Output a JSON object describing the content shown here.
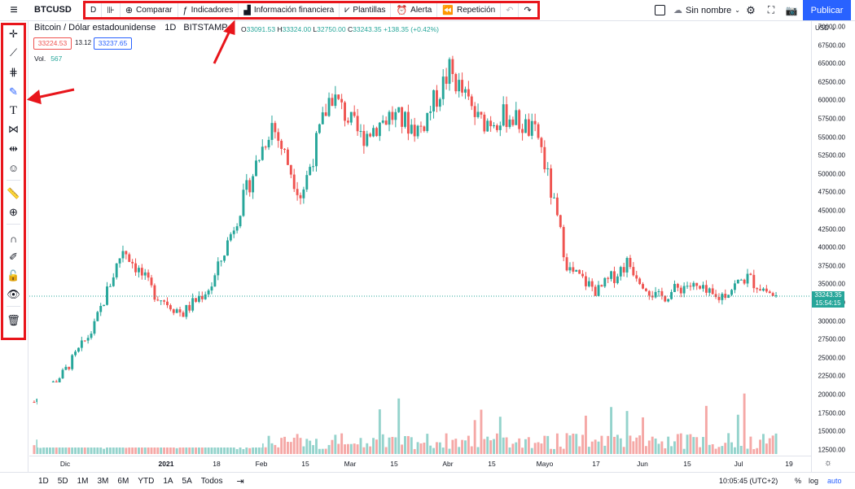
{
  "header": {
    "menu_icon": "hamburger-icon",
    "symbol": "BTCUSD",
    "interval": "D",
    "toolbar": [
      {
        "label": "",
        "icon": "candles-icon"
      },
      {
        "label": "Comparar",
        "icon": "plus-circle-icon"
      },
      {
        "label": "Indicadores",
        "icon": "indicators-icon"
      },
      {
        "label": "Información financiera",
        "icon": "bar-chart-icon"
      },
      {
        "label": "Plantillas",
        "icon": "templates-icon"
      },
      {
        "label": "Alerta",
        "icon": "alarm-icon"
      },
      {
        "label": "Repetición",
        "icon": "rewind-icon"
      }
    ],
    "layout_name": "Sin nombre",
    "publish": "Publicar"
  },
  "legend": {
    "title": "Bitcoin / Dólar estadounidense",
    "interval": "1D",
    "exchange": "BITSTAMP",
    "open": "33091.53",
    "high": "33324.00",
    "low": "32750.00",
    "close": "33243.35",
    "change": "+138.35 (+0.42%)",
    "bid": "33224.53",
    "spread": "13.12",
    "ask": "33237.65",
    "vol_label": "Vol.",
    "vol_value": "567"
  },
  "left_tools": [
    "crosshair-icon",
    "trend-line-icon",
    "fib-icon",
    "brush-icon",
    "text-icon",
    "pattern-icon",
    "measure-range-icon",
    "emoji-icon",
    "ruler-icon",
    "zoom-in-icon",
    "magnet-icon",
    "lock-drawing-icon",
    "lock-icon",
    "eye-icon",
    "trash-icon"
  ],
  "price_axis": {
    "currency": "USD",
    "labels": [
      "70000.00",
      "67500.00",
      "65000.00",
      "62500.00",
      "60000.00",
      "57500.00",
      "55000.00",
      "52500.00",
      "50000.00",
      "47500.00",
      "45000.00",
      "42500.00",
      "40000.00",
      "37500.00",
      "35000.00",
      "32500.00",
      "30000.00",
      "27500.00",
      "25000.00",
      "22500.00",
      "20000.00",
      "17500.00",
      "15000.00",
      "12500.00"
    ],
    "last_price": "33243.35",
    "countdown": "15:54:15"
  },
  "time_axis": {
    "labels": [
      {
        "text": "Dic",
        "bold": false
      },
      {
        "text": "2021",
        "bold": true
      },
      {
        "text": "18",
        "bold": false
      },
      {
        "text": "Feb",
        "bold": false
      },
      {
        "text": "15",
        "bold": false
      },
      {
        "text": "Mar",
        "bold": false
      },
      {
        "text": "15",
        "bold": false
      },
      {
        "text": "Abr",
        "bold": false
      },
      {
        "text": "15",
        "bold": false
      },
      {
        "text": "Mayo",
        "bold": false
      },
      {
        "text": "17",
        "bold": false
      },
      {
        "text": "Jun",
        "bold": false
      },
      {
        "text": "15",
        "bold": false
      },
      {
        "text": "Jul",
        "bold": false
      },
      {
        "text": "19",
        "bold": false
      }
    ]
  },
  "bottom": {
    "ranges": [
      "1D",
      "5D",
      "1M",
      "3M",
      "6M",
      "YTD",
      "1A",
      "5A",
      "Todos"
    ],
    "time": "10:05:45 (UTC+2)",
    "percent": "%",
    "log": "log",
    "auto": "auto"
  },
  "chart_data": {
    "type": "candlestick",
    "title": "Bitcoin / Dólar estadounidense",
    "ylim": [
      11000,
      70500
    ],
    "colors": {
      "up": "#26a69a",
      "down": "#ef5350"
    },
    "x": [
      "Dic",
      "2021",
      "18",
      "Feb",
      "15",
      "Mar",
      "15",
      "Abr",
      "15",
      "Mayo",
      "17",
      "Jun",
      "15",
      "Jul",
      "19"
    ],
    "close_path": [
      19000,
      23000,
      29000,
      40000,
      34000,
      31000,
      35000,
      46000,
      57000,
      47000,
      61000,
      55000,
      58000,
      56000,
      64000,
      57000,
      58000,
      55000,
      37000,
      34000,
      38000,
      33000,
      35000,
      33000,
      36000,
      33243
    ]
  }
}
